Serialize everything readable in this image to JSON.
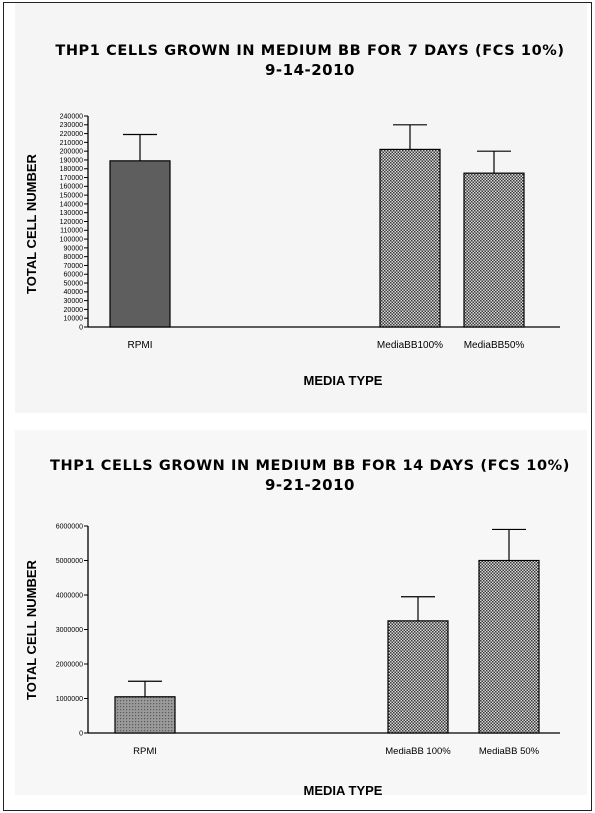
{
  "chart_data": [
    {
      "type": "bar",
      "title": "THP1 CELLS GROWN IN MEDIUM BB FOR 7 DAYS (FCS 10%)",
      "subtitle": "9-14-2010",
      "xlabel": "MEDIA TYPE",
      "ylabel": "TOTAL CELL NUMBER",
      "ylim": [
        0,
        240000
      ],
      "yticks": [
        0,
        10000,
        20000,
        30000,
        40000,
        50000,
        60000,
        70000,
        80000,
        90000,
        100000,
        110000,
        120000,
        130000,
        140000,
        150000,
        160000,
        170000,
        180000,
        190000,
        200000,
        210000,
        220000,
        230000,
        240000
      ],
      "categories": [
        "RPMI",
        "MediaBB100%",
        "MediaBB50%"
      ],
      "values": [
        189000,
        202000,
        175000
      ],
      "errors": [
        30000,
        28000,
        25000
      ],
      "fills": [
        "solid-gray",
        "checker",
        "checker"
      ],
      "grid": false
    },
    {
      "type": "bar",
      "title": "THP1 CELLS GROWN IN MEDIUM BB FOR 14 DAYS (FCS 10%)",
      "subtitle": "9-21-2010",
      "xlabel": "MEDIA TYPE",
      "ylabel": "TOTAL CELL NUMBER",
      "ylim": [
        0,
        6000000
      ],
      "yticks": [
        0,
        1000000,
        2000000,
        3000000,
        4000000,
        5000000,
        6000000
      ],
      "categories": [
        "RPMI",
        "MediaBB 100%",
        "MediaBB 50%"
      ],
      "values": [
        1050000,
        3250000,
        5000000
      ],
      "errors": [
        450000,
        700000,
        900000
      ],
      "fills": [
        "dots",
        "checker",
        "checker"
      ],
      "grid": false
    }
  ]
}
